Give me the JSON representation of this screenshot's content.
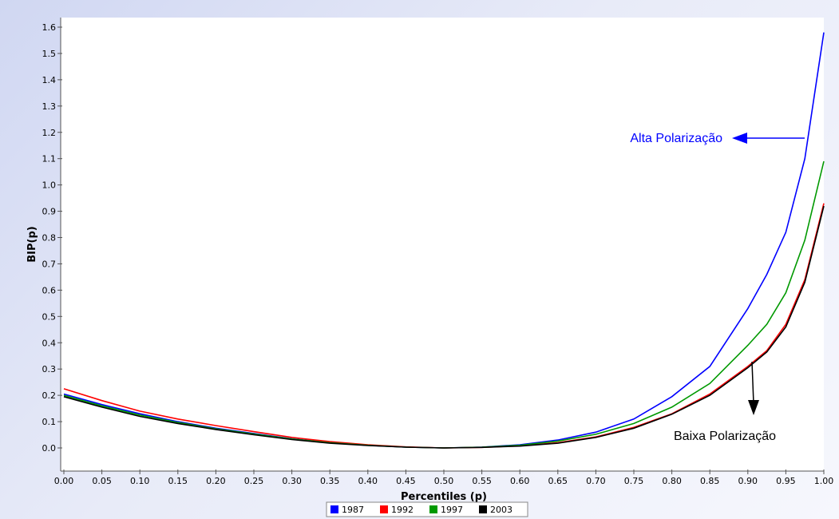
{
  "chart_data": {
    "type": "line",
    "title": "",
    "xlabel": "Percentiles (p)",
    "ylabel": "BIP(p)",
    "xlim": [
      0.0,
      1.0
    ],
    "ylim": [
      -0.05,
      1.65
    ],
    "grid": false,
    "legend_position": "bottom",
    "x_ticks": [
      "0.00",
      "0.05",
      "0.10",
      "0.15",
      "0.20",
      "0.25",
      "0.30",
      "0.35",
      "0.40",
      "0.45",
      "0.50",
      "0.55",
      "0.60",
      "0.65",
      "0.70",
      "0.75",
      "0.80",
      "0.85",
      "0.90",
      "0.95",
      "1.00"
    ],
    "y_ticks": [
      "0.0",
      "0.1",
      "0.2",
      "0.3",
      "0.4",
      "0.5",
      "0.6",
      "0.7",
      "0.8",
      "0.9",
      "1.0",
      "1.1",
      "1.2",
      "1.3",
      "1.4",
      "1.5",
      "1.6"
    ],
    "x": [
      0.0,
      0.05,
      0.1,
      0.15,
      0.2,
      0.25,
      0.3,
      0.35,
      0.4,
      0.45,
      0.5,
      0.55,
      0.6,
      0.65,
      0.7,
      0.75,
      0.8,
      0.85,
      0.9,
      0.925,
      0.95,
      0.975,
      1.0
    ],
    "series": [
      {
        "name": "1987",
        "color": "#0000ff",
        "values": [
          0.205,
          0.165,
          0.13,
          0.1,
          0.075,
          0.055,
          0.035,
          0.02,
          0.01,
          0.003,
          0.0,
          0.003,
          0.012,
          0.03,
          0.06,
          0.11,
          0.195,
          0.31,
          0.53,
          0.66,
          0.82,
          1.1,
          1.58
        ]
      },
      {
        "name": "1992",
        "color": "#ff0000",
        "values": [
          0.225,
          0.18,
          0.14,
          0.11,
          0.085,
          0.062,
          0.04,
          0.024,
          0.012,
          0.004,
          0.0,
          0.002,
          0.008,
          0.02,
          0.042,
          0.078,
          0.13,
          0.205,
          0.31,
          0.37,
          0.47,
          0.64,
          0.93
        ]
      },
      {
        "name": "1997",
        "color": "#009900",
        "values": [
          0.2,
          0.16,
          0.125,
          0.097,
          0.073,
          0.053,
          0.034,
          0.02,
          0.01,
          0.003,
          0.0,
          0.003,
          0.01,
          0.026,
          0.052,
          0.093,
          0.155,
          0.245,
          0.39,
          0.47,
          0.59,
          0.79,
          1.09
        ]
      },
      {
        "name": "2003",
        "color": "#000000",
        "values": [
          0.195,
          0.155,
          0.12,
          0.093,
          0.07,
          0.05,
          0.032,
          0.018,
          0.009,
          0.003,
          0.0,
          0.002,
          0.007,
          0.018,
          0.04,
          0.075,
          0.128,
          0.2,
          0.305,
          0.365,
          0.46,
          0.63,
          0.92
        ]
      }
    ],
    "annotations": [
      {
        "text": "Alta Polarização",
        "color": "#0000ff"
      },
      {
        "text": "Baixa Polarização",
        "color": "#000000"
      }
    ]
  }
}
